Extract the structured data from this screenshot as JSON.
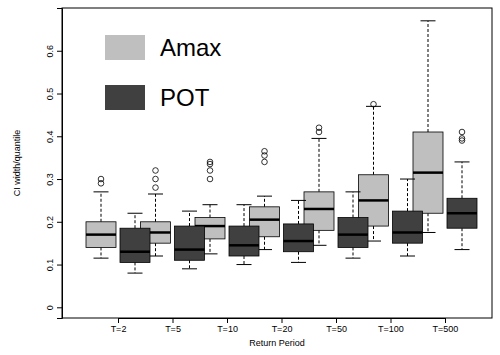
{
  "chart_data": {
    "type": "box",
    "x_label": "Return Period",
    "y_label": "CI width/quantile",
    "categories": [
      "T=2",
      "T=5",
      "T=10",
      "T=20",
      "T=50",
      "T=100",
      "T=500"
    ],
    "ylim": [
      -0.025,
      0.7
    ],
    "yticks": [
      0,
      0.1,
      0.2,
      0.3,
      0.4,
      0.5,
      0.6
    ],
    "legend": "upper left",
    "series": [
      {
        "name": "Amax",
        "color": "#bfbfbf",
        "low": [
          0.115,
          0.12,
          0.125,
          0.135,
          0.145,
          0.155,
          0.175
        ],
        "q1": [
          0.14,
          0.15,
          0.16,
          0.165,
          0.18,
          0.19,
          0.22
        ],
        "median": [
          0.17,
          0.175,
          0.19,
          0.205,
          0.23,
          0.25,
          0.315
        ],
        "q3": [
          0.2,
          0.2,
          0.21,
          0.235,
          0.27,
          0.31,
          0.41
        ],
        "high": [
          0.27,
          0.265,
          0.24,
          0.26,
          0.395,
          0.47,
          0.67
        ],
        "outliers": [
          [
            0.29,
            0.3
          ],
          [
            0.28,
            0.3,
            0.32
          ],
          [
            0.3,
            0.32,
            0.335,
            0.34
          ],
          [
            0.34,
            0.355,
            0.365
          ],
          [
            0.41,
            0.42
          ],
          [
            0.475
          ],
          []
        ]
      },
      {
        "name": "POT",
        "color": "#404040",
        "low": [
          0.08,
          0.09,
          0.1,
          0.105,
          0.115,
          0.12,
          0.135
        ],
        "q1": [
          0.105,
          0.11,
          0.12,
          0.13,
          0.14,
          0.15,
          0.185
        ],
        "median": [
          0.13,
          0.135,
          0.145,
          0.155,
          0.17,
          0.175,
          0.22
        ],
        "q3": [
          0.185,
          0.19,
          0.19,
          0.195,
          0.21,
          0.225,
          0.255
        ],
        "high": [
          0.22,
          0.225,
          0.24,
          0.25,
          0.27,
          0.3,
          0.34
        ],
        "outliers": [
          [],
          [],
          [],
          [],
          [],
          [],
          [
            0.39,
            0.395,
            0.41
          ]
        ]
      }
    ]
  }
}
